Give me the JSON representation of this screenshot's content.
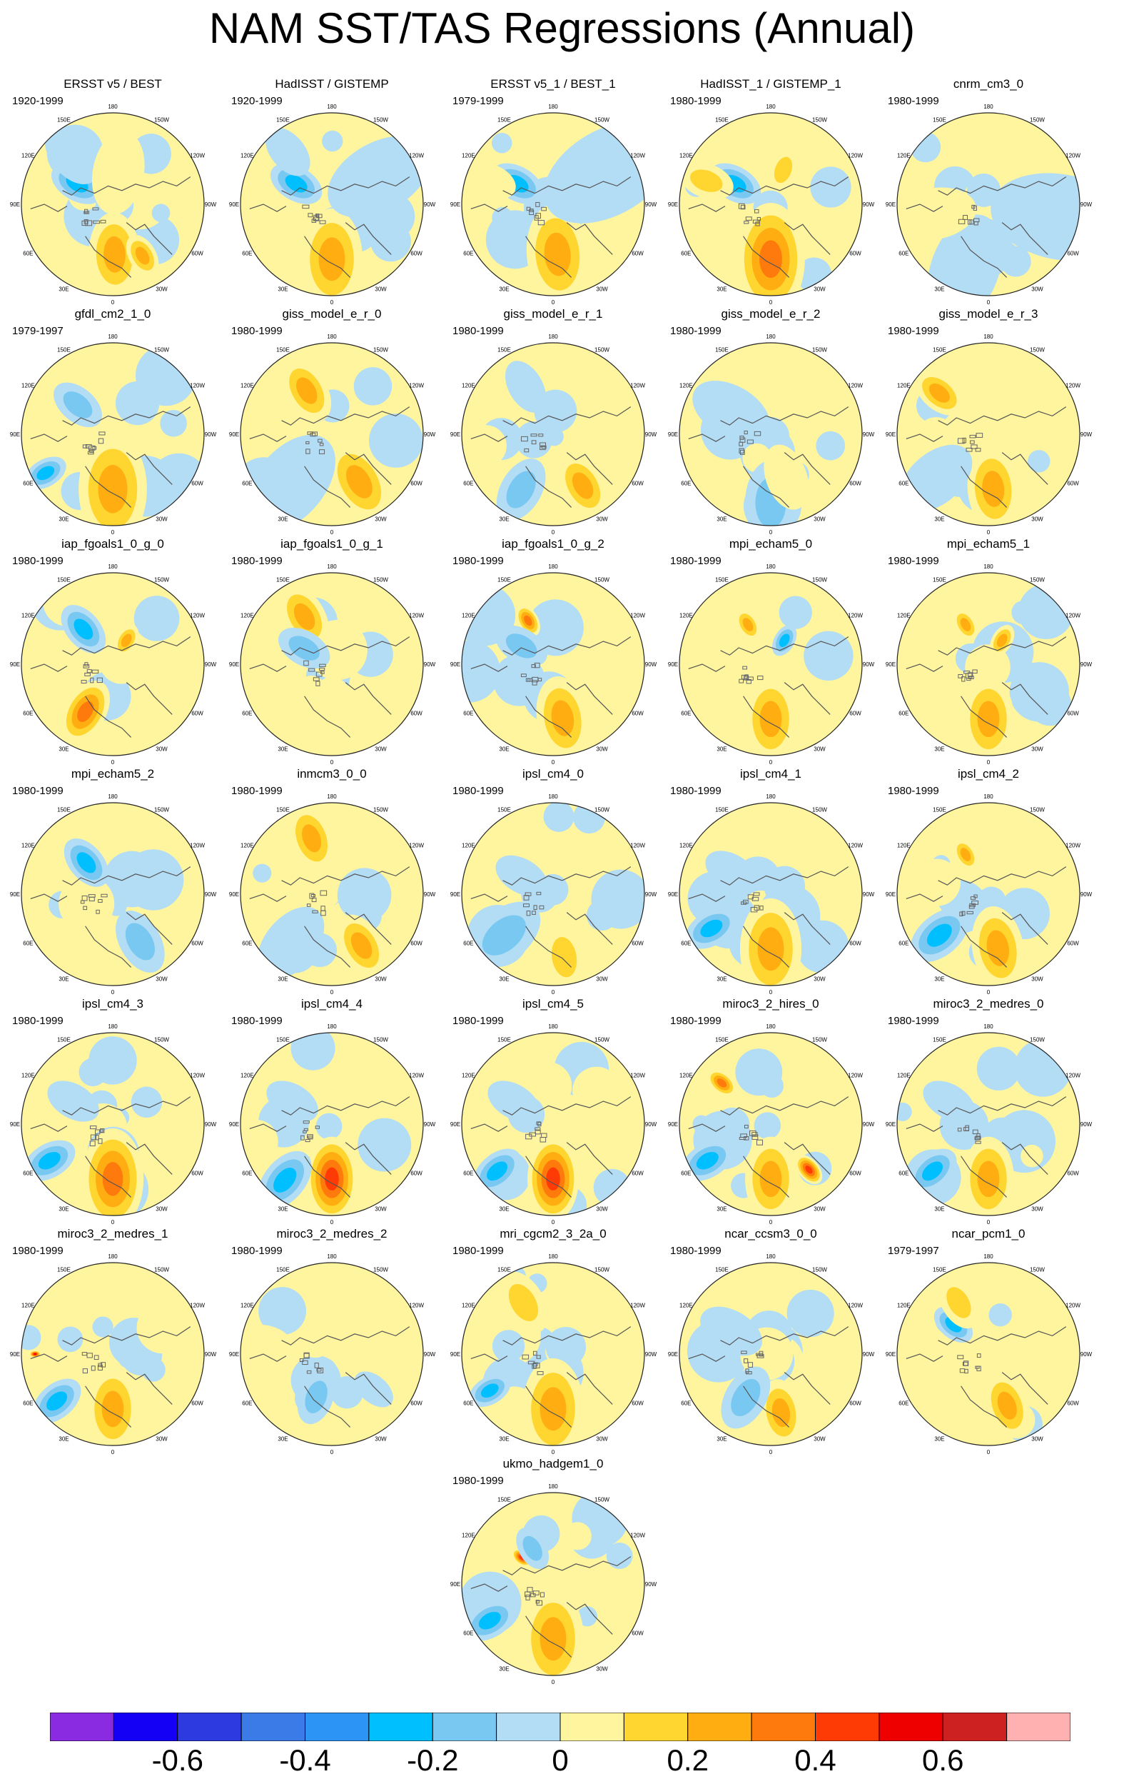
{
  "title": "NAM SST/TAS Regressions (Annual)",
  "map_labels": {
    "lon_180": "180",
    "lon_150w": "150W",
    "lon_150e": "150E",
    "lon_120w": "120W",
    "lon_120e": "120E",
    "lon_90w": "90W",
    "lon_90e": "90E",
    "lon_60w": "60W",
    "lon_60e": "60E",
    "lon_30w": "30W",
    "lon_30e": "30E",
    "lon_0": "0"
  },
  "panels": [
    {
      "title": "ERSST v5 / BEST",
      "period": "1920-1999",
      "anomalies": [
        {
          "lon": 178,
          "r": 0.55,
          "v": 0.3,
          "w": 0.15
        },
        {
          "lon": 150,
          "r": 0.65,
          "v": 0.35,
          "w": 0.08
        },
        {
          "lon": 300,
          "r": 0.45,
          "v": -0.25,
          "w": 0.1
        },
        {
          "lon": 320,
          "r": 0.7,
          "v": -0.15,
          "w": 0.12
        },
        {
          "lon": 10,
          "r": 0.35,
          "v": 0.15,
          "w": 0.15
        }
      ]
    },
    {
      "title": "HadISST / GISTEMP",
      "period": "1920-1999",
      "anomalies": [
        {
          "lon": 180,
          "r": 0.6,
          "v": 0.25,
          "w": 0.18
        },
        {
          "lon": 300,
          "r": 0.45,
          "v": -0.3,
          "w": 0.1
        },
        {
          "lon": 320,
          "r": 0.75,
          "v": -0.15,
          "w": 0.1
        },
        {
          "lon": 60,
          "r": 0.6,
          "v": -0.15,
          "w": 0.2
        }
      ]
    },
    {
      "title": "ERSST v5_1 / BEST_1",
      "period": "1979-1999",
      "anomalies": [
        {
          "lon": 175,
          "r": 0.55,
          "v": 0.35,
          "w": 0.18
        },
        {
          "lon": 300,
          "r": 0.45,
          "v": -0.35,
          "w": 0.1
        },
        {
          "lon": 290,
          "r": 0.75,
          "v": 0.15,
          "w": 0.1
        },
        {
          "lon": 60,
          "r": 0.7,
          "v": -0.1,
          "w": 0.25
        }
      ]
    },
    {
      "title": "HadISST_1 / GISTEMP_1",
      "period": "1980-1999",
      "anomalies": [
        {
          "lon": 180,
          "r": 0.6,
          "v": 0.4,
          "w": 0.2
        },
        {
          "lon": 300,
          "r": 0.45,
          "v": -0.35,
          "w": 0.1
        },
        {
          "lon": 290,
          "r": 0.75,
          "v": 0.2,
          "w": 0.1
        },
        {
          "lon": 20,
          "r": 0.4,
          "v": 0.2,
          "w": 0.08
        }
      ]
    },
    {
      "title": "cnrm_cm3_0",
      "period": "1980-1999",
      "anomalies": [
        {
          "lon": 100,
          "r": 0.8,
          "v": -0.15,
          "w": 0.25
        },
        {
          "lon": 200,
          "r": 0.75,
          "v": -0.1,
          "w": 0.2
        },
        {
          "lon": 260,
          "r": 0.6,
          "v": 0.15,
          "w": 0.15
        }
      ]
    },
    {
      "title": "gfdl_cm2_1_0",
      "period": "1979-1997",
      "anomalies": [
        {
          "lon": 180,
          "r": 0.6,
          "v": 0.35,
          "w": 0.2
        },
        {
          "lon": 240,
          "r": 0.85,
          "v": -0.25,
          "w": 0.08
        },
        {
          "lon": 310,
          "r": 0.5,
          "v": -0.2,
          "w": 0.1
        }
      ]
    },
    {
      "title": "giss_model_e_r_0",
      "period": "1980-1999",
      "anomalies": [
        {
          "lon": 150,
          "r": 0.6,
          "v": 0.25,
          "w": 0.15
        },
        {
          "lon": 330,
          "r": 0.55,
          "v": 0.3,
          "w": 0.12
        },
        {
          "lon": 220,
          "r": 0.7,
          "v": -0.15,
          "w": 0.2
        }
      ]
    },
    {
      "title": "giss_model_e_r_1",
      "period": "1980-1999",
      "anomalies": [
        {
          "lon": 150,
          "r": 0.65,
          "v": 0.3,
          "w": 0.12
        },
        {
          "lon": 210,
          "r": 0.7,
          "v": -0.2,
          "w": 0.12
        },
        {
          "lon": 330,
          "r": 0.6,
          "v": -0.15,
          "w": 0.1
        }
      ]
    },
    {
      "title": "giss_model_e_r_2",
      "period": "1980-1999",
      "anomalies": [
        {
          "lon": 180,
          "r": 0.75,
          "v": -0.2,
          "w": 0.15
        },
        {
          "lon": 160,
          "r": 0.5,
          "v": 0.15,
          "w": 0.12
        },
        {
          "lon": 300,
          "r": 0.5,
          "v": -0.1,
          "w": 0.15
        }
      ]
    },
    {
      "title": "giss_model_e_r_3",
      "period": "1980-1999",
      "anomalies": [
        {
          "lon": 175,
          "r": 0.6,
          "v": 0.3,
          "w": 0.15
        },
        {
          "lon": 310,
          "r": 0.7,
          "v": 0.35,
          "w": 0.1
        },
        {
          "lon": 230,
          "r": 0.75,
          "v": -0.15,
          "w": 0.15
        }
      ]
    },
    {
      "title": "iap_fgoals1_0_g_0",
      "period": "1980-1999",
      "anomalies": [
        {
          "lon": 210,
          "r": 0.6,
          "v": 0.4,
          "w": 0.12
        },
        {
          "lon": 320,
          "r": 0.5,
          "v": -0.3,
          "w": 0.1
        },
        {
          "lon": 30,
          "r": 0.3,
          "v": 0.25,
          "w": 0.06
        }
      ]
    },
    {
      "title": "iap_fgoals1_0_g_1",
      "period": "1980-1999",
      "anomalies": [
        {
          "lon": 330,
          "r": 0.6,
          "v": 0.3,
          "w": 0.12
        },
        {
          "lon": 180,
          "r": 0.6,
          "v": 0.15,
          "w": 0.15
        },
        {
          "lon": 300,
          "r": 0.35,
          "v": -0.2,
          "w": 0.1
        }
      ]
    },
    {
      "title": "iap_fgoals1_0_g_2",
      "period": "1980-1999",
      "anomalies": [
        {
          "lon": 170,
          "r": 0.6,
          "v": 0.35,
          "w": 0.15
        },
        {
          "lon": 330,
          "r": 0.55,
          "v": 0.4,
          "w": 0.06
        },
        {
          "lon": 300,
          "r": 0.4,
          "v": -0.2,
          "w": 0.1
        }
      ]
    },
    {
      "title": "mpi_echam5_0",
      "period": "1980-1999",
      "anomalies": [
        {
          "lon": 180,
          "r": 0.6,
          "v": 0.25,
          "w": 0.15
        },
        {
          "lon": 330,
          "r": 0.5,
          "v": 0.3,
          "w": 0.06
        },
        {
          "lon": 30,
          "r": 0.3,
          "v": -0.3,
          "w": 0.06
        }
      ]
    },
    {
      "title": "mpi_echam5_1",
      "period": "1980-1999",
      "anomalies": [
        {
          "lon": 180,
          "r": 0.6,
          "v": 0.3,
          "w": 0.15
        },
        {
          "lon": 330,
          "r": 0.5,
          "v": 0.3,
          "w": 0.06
        },
        {
          "lon": 30,
          "r": 0.3,
          "v": 0.3,
          "w": 0.06
        }
      ]
    },
    {
      "title": "mpi_echam5_2",
      "period": "1980-1999",
      "anomalies": [
        {
          "lon": 150,
          "r": 0.6,
          "v": -0.2,
          "w": 0.12
        },
        {
          "lon": 320,
          "r": 0.45,
          "v": -0.3,
          "w": 0.1
        },
        {
          "lon": 210,
          "r": 0.7,
          "v": 0.15,
          "w": 0.15
        }
      ]
    },
    {
      "title": "inmcm3_0_0",
      "period": "1980-1999",
      "anomalies": [
        {
          "lon": 150,
          "r": 0.65,
          "v": 0.3,
          "w": 0.12
        },
        {
          "lon": 340,
          "r": 0.65,
          "v": 0.3,
          "w": 0.12
        },
        {
          "lon": 220,
          "r": 0.7,
          "v": -0.15,
          "w": 0.15
        }
      ]
    },
    {
      "title": "ipsl_cm4_0",
      "period": "1980-1999",
      "anomalies": [
        {
          "lon": 170,
          "r": 0.7,
          "v": 0.2,
          "w": 0.12
        },
        {
          "lon": 230,
          "r": 0.7,
          "v": -0.2,
          "w": 0.15
        },
        {
          "lon": 300,
          "r": 0.4,
          "v": -0.1,
          "w": 0.1
        }
      ]
    },
    {
      "title": "ipsl_cm4_1",
      "period": "1980-1999",
      "anomalies": [
        {
          "lon": 180,
          "r": 0.6,
          "v": 0.35,
          "w": 0.18
        },
        {
          "lon": 240,
          "r": 0.75,
          "v": -0.3,
          "w": 0.1
        },
        {
          "lon": 300,
          "r": 0.5,
          "v": -0.15,
          "w": 0.1
        }
      ]
    },
    {
      "title": "ipsl_cm4_2",
      "period": "1980-1999",
      "anomalies": [
        {
          "lon": 170,
          "r": 0.6,
          "v": 0.25,
          "w": 0.15
        },
        {
          "lon": 230,
          "r": 0.7,
          "v": -0.3,
          "w": 0.12
        },
        {
          "lon": 330,
          "r": 0.5,
          "v": 0.35,
          "w": 0.06
        }
      ]
    },
    {
      "title": "ipsl_cm4_3",
      "period": "1980-1999",
      "anomalies": [
        {
          "lon": 180,
          "r": 0.6,
          "v": 0.4,
          "w": 0.18
        },
        {
          "lon": 240,
          "r": 0.8,
          "v": -0.25,
          "w": 0.1
        },
        {
          "lon": 300,
          "r": 0.5,
          "v": -0.15,
          "w": 0.1
        }
      ]
    },
    {
      "title": "ipsl_cm4_4",
      "period": "1980-1999",
      "anomalies": [
        {
          "lon": 180,
          "r": 0.6,
          "v": 0.45,
          "w": 0.15
        },
        {
          "lon": 220,
          "r": 0.8,
          "v": -0.3,
          "w": 0.12
        },
        {
          "lon": 300,
          "r": 0.5,
          "v": -0.15,
          "w": 0.1
        }
      ]
    },
    {
      "title": "ipsl_cm4_5",
      "period": "1980-1999",
      "anomalies": [
        {
          "lon": 180,
          "r": 0.6,
          "v": 0.45,
          "w": 0.15
        },
        {
          "lon": 230,
          "r": 0.8,
          "v": -0.35,
          "w": 0.1
        },
        {
          "lon": 300,
          "r": 0.5,
          "v": -0.15,
          "w": 0.1
        }
      ]
    },
    {
      "title": "miroc3_2_hires_0",
      "period": "1980-1999",
      "anomalies": [
        {
          "lon": 180,
          "r": 0.6,
          "v": 0.3,
          "w": 0.15
        },
        {
          "lon": 140,
          "r": 0.65,
          "v": 0.45,
          "w": 0.06
        },
        {
          "lon": 240,
          "r": 0.8,
          "v": -0.3,
          "w": 0.1
        },
        {
          "lon": 310,
          "r": 0.7,
          "v": 0.4,
          "w": 0.06
        }
      ]
    },
    {
      "title": "miroc3_2_medres_0",
      "period": "1980-1999",
      "anomalies": [
        {
          "lon": 180,
          "r": 0.6,
          "v": 0.3,
          "w": 0.15
        },
        {
          "lon": 230,
          "r": 0.8,
          "v": -0.35,
          "w": 0.1
        },
        {
          "lon": 300,
          "r": 0.5,
          "v": -0.15,
          "w": 0.1
        }
      ]
    },
    {
      "title": "miroc3_2_medres_1",
      "period": "1980-1999",
      "anomalies": [
        {
          "lon": 180,
          "r": 0.6,
          "v": 0.3,
          "w": 0.15
        },
        {
          "lon": 230,
          "r": 0.8,
          "v": -0.3,
          "w": 0.1
        },
        {
          "lon": 270,
          "r": 0.85,
          "v": 0.55,
          "w": 0.02
        }
      ]
    },
    {
      "title": "miroc3_2_medres_2",
      "period": "1980-1999",
      "anomalies": [
        {
          "lon": 200,
          "r": 0.5,
          "v": -0.2,
          "w": 0.1
        },
        {
          "lon": 130,
          "r": 0.6,
          "v": -0.15,
          "w": 0.08
        },
        {
          "lon": 280,
          "r": 0.75,
          "v": 0.15,
          "w": 0.1
        }
      ]
    },
    {
      "title": "mri_cgcm2_3_2a_0",
      "period": "1980-1999",
      "anomalies": [
        {
          "lon": 180,
          "r": 0.6,
          "v": 0.35,
          "w": 0.18
        },
        {
          "lon": 240,
          "r": 0.8,
          "v": -0.3,
          "w": 0.08
        },
        {
          "lon": 330,
          "r": 0.65,
          "v": 0.2,
          "w": 0.12
        }
      ]
    },
    {
      "title": "ncar_ccsm3_0_0",
      "period": "1980-1999",
      "anomalies": [
        {
          "lon": 170,
          "r": 0.65,
          "v": 0.25,
          "w": 0.12
        },
        {
          "lon": 210,
          "r": 0.55,
          "v": -0.2,
          "w": 0.12
        },
        {
          "lon": 300,
          "r": 0.5,
          "v": -0.15,
          "w": 0.12
        }
      ]
    },
    {
      "title": "ncar_pcm1_0",
      "period": "1979-1997",
      "anomalies": [
        {
          "lon": 160,
          "r": 0.6,
          "v": 0.3,
          "w": 0.12
        },
        {
          "lon": 310,
          "r": 0.5,
          "v": -0.25,
          "w": 0.08
        },
        {
          "lon": 330,
          "r": 0.65,
          "v": 0.2,
          "w": 0.1
        }
      ]
    },
    {
      "title": "ukmo_hadgem1_0",
      "period": "1980-1999",
      "anomalies": [
        {
          "lon": 180,
          "r": 0.6,
          "v": 0.35,
          "w": 0.18
        },
        {
          "lon": 240,
          "r": 0.8,
          "v": -0.3,
          "w": 0.1
        },
        {
          "lon": 310,
          "r": 0.45,
          "v": 0.45,
          "w": 0.04
        },
        {
          "lon": 330,
          "r": 0.45,
          "v": -0.2,
          "w": 0.08
        }
      ]
    }
  ],
  "colorbar": {
    "colors": [
      "#8a2be2",
      "#1400f5",
      "#2d3ae0",
      "#3a7be8",
      "#2b94f5",
      "#00bfff",
      "#79c8f2",
      "#b3dcf5",
      "#fff59e",
      "#ffd530",
      "#ffad11",
      "#ff7a0c",
      "#ff3b05",
      "#ee0000",
      "#cd2020",
      "#ffb0b0"
    ],
    "labels": [
      "-0.6",
      "-0.4",
      "-0.2",
      "0",
      "0.2",
      "0.4",
      "0.6"
    ],
    "label_values": [
      -0.6,
      -0.4,
      -0.2,
      0,
      0.2,
      0.4,
      0.6
    ],
    "min": -0.8,
    "max": 0.8
  }
}
